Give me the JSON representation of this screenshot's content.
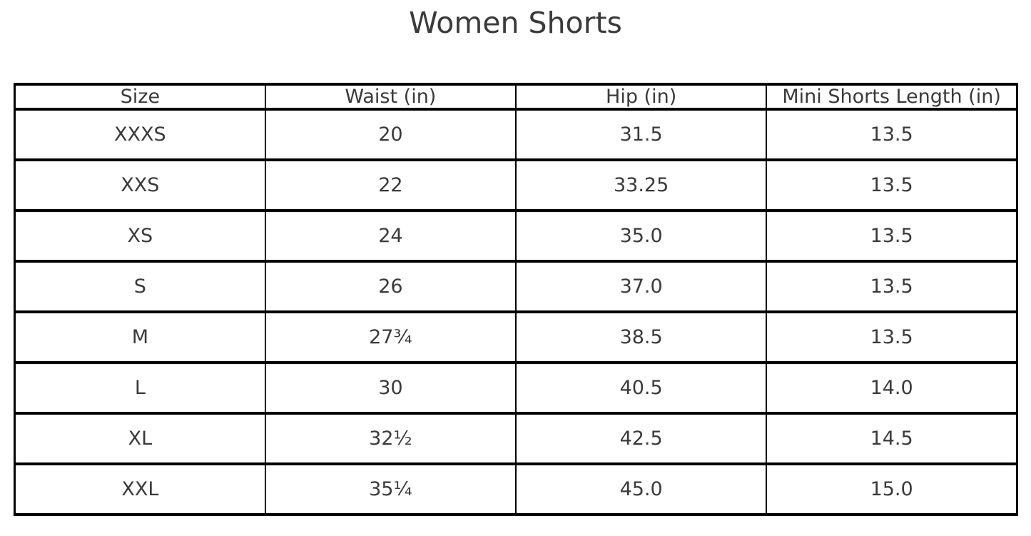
{
  "page": {
    "title": "Women Shorts"
  },
  "colors": {
    "text": "#3a3a3a",
    "border": "#000000",
    "background": "#ffffff"
  },
  "chart_data": {
    "type": "table",
    "title": "Women Shorts",
    "columns": [
      "Size",
      "Waist (in)",
      "Hip (in)",
      "Mini Shorts Length (in)"
    ],
    "rows": [
      [
        "XXXS",
        "20",
        "31.5",
        "13.5"
      ],
      [
        "XXS",
        "22",
        "33.25",
        "13.5"
      ],
      [
        "XS",
        "24",
        "35.0",
        "13.5"
      ],
      [
        "S",
        "26",
        "37.0",
        "13.5"
      ],
      [
        "M",
        "27¾",
        "38.5",
        "13.5"
      ],
      [
        "L",
        "30",
        "40.5",
        "14.0"
      ],
      [
        "XL",
        "32½",
        "42.5",
        "14.5"
      ],
      [
        "XXL",
        "35¼",
        "45.0",
        "15.0"
      ]
    ],
    "layout": {
      "grid": true,
      "column_widths_equal": true,
      "header_row": true
    }
  }
}
